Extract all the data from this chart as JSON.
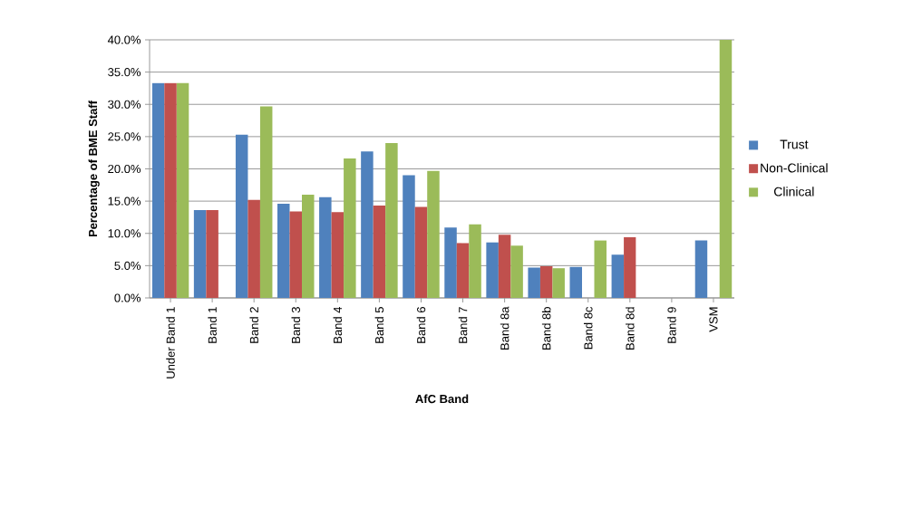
{
  "chart_data": {
    "type": "bar",
    "xlabel": "AfC Band",
    "ylabel": "Percentage of BME Staff",
    "categories": [
      "Under Band 1",
      "Band 1",
      "Band 2",
      "Band 3",
      "Band 4",
      "Band 5",
      "Band 6",
      "Band 7",
      "Band 8a",
      "Band 8b",
      "Band 8c",
      "Band 8d",
      "Band 9",
      "VSM"
    ],
    "series": [
      {
        "name": "Trust",
        "color": "#4f81bd",
        "values": [
          33.3,
          13.6,
          25.3,
          14.6,
          15.6,
          22.7,
          19.0,
          10.9,
          8.6,
          4.7,
          4.8,
          6.7,
          null,
          8.9
        ]
      },
      {
        "name": "Non-Clinical",
        "color": "#c0504d",
        "values": [
          33.3,
          13.6,
          15.2,
          13.4,
          13.3,
          14.3,
          14.1,
          8.5,
          9.8,
          4.9,
          null,
          9.4,
          null,
          null
        ]
      },
      {
        "name": "Clinical",
        "color": "#9bbb59",
        "values": [
          33.3,
          null,
          29.7,
          16.0,
          21.6,
          24.0,
          19.7,
          11.4,
          8.1,
          4.6,
          8.9,
          null,
          null,
          40.0
        ]
      }
    ],
    "ylim": [
      0,
      40
    ],
    "yticks": [
      {
        "value": 0,
        "label": "0.0%"
      },
      {
        "value": 5,
        "label": "5.0%"
      },
      {
        "value": 10,
        "label": "10.0%"
      },
      {
        "value": 15,
        "label": "15.0%"
      },
      {
        "value": 20,
        "label": "20.0%"
      },
      {
        "value": 25,
        "label": "25.0%"
      },
      {
        "value": 30,
        "label": "30.0%"
      },
      {
        "value": 35,
        "label": "35.0%"
      },
      {
        "value": 40,
        "label": "40.0%"
      }
    ],
    "grid": "y",
    "legend": "right"
  }
}
